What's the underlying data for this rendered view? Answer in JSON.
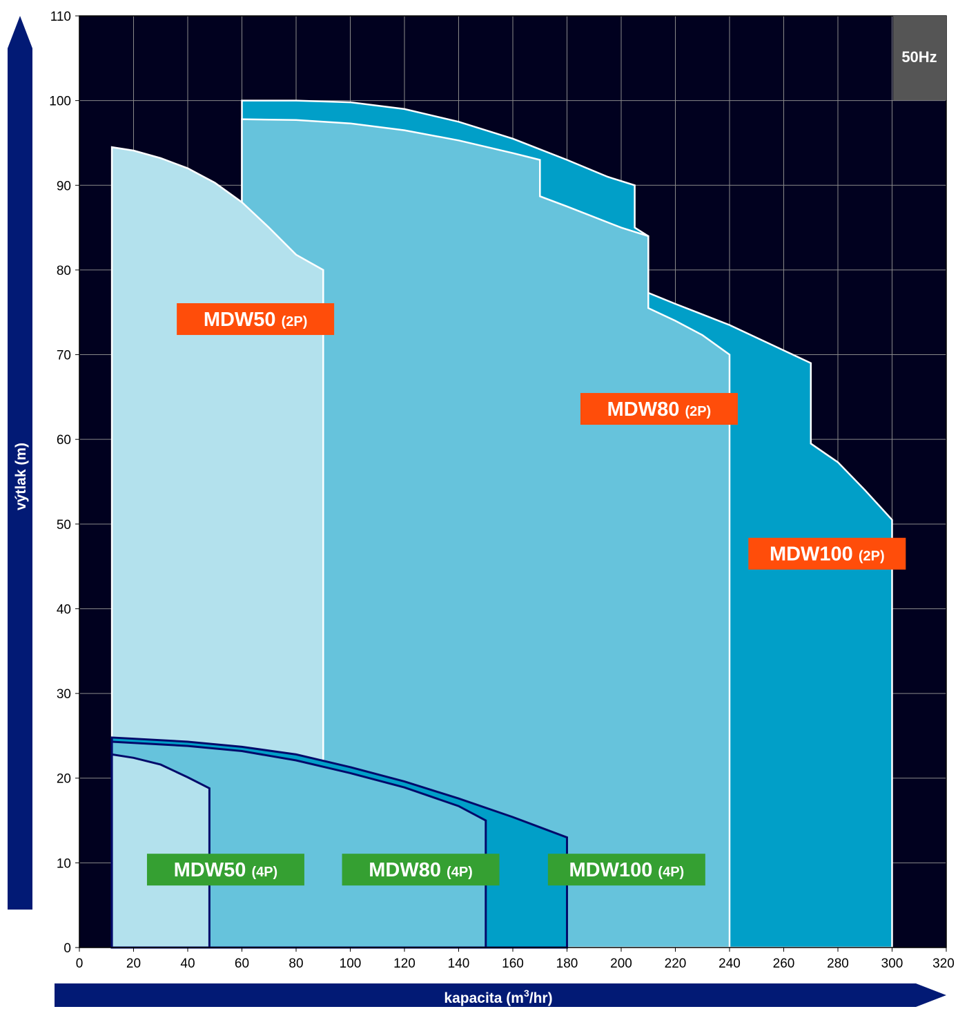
{
  "chart_data": {
    "type": "area",
    "xlabel": "kapacita (m",
    "xlabel_sup": "3",
    "xlabel_tail": "/hr)",
    "ylabel": "výtlak (m)",
    "xlim": [
      0,
      320
    ],
    "ylim": [
      0,
      110
    ],
    "xticks": [
      "0",
      "20",
      "40",
      "60",
      "80",
      "100",
      "120",
      "140",
      "160",
      "180",
      "200",
      "220",
      "240",
      "260",
      "280",
      "300",
      "320"
    ],
    "yticks": [
      "0",
      "10",
      "20",
      "30",
      "40",
      "50",
      "60",
      "70",
      "80",
      "90",
      "100",
      "110"
    ],
    "grid": true,
    "frequency_badge": "50Hz",
    "colors": {
      "background": "#01011f",
      "grid": "#8a8a8a",
      "light": "#b3e1ed",
      "mid": "#66c3dc",
      "dark": "#019fc8",
      "outline_2p": "#ffffff",
      "outline_4p": "#030a6b",
      "label_2p": "#ff4d0a",
      "label_4p": "#35a032",
      "axis_arrow": "#021a75",
      "badge": "#555555"
    },
    "series": [
      {
        "name": "MDW100 (2P)",
        "fill": "dark",
        "outline": "outline_2p",
        "points": [
          [
            60,
            0
          ],
          [
            60,
            100
          ],
          [
            80,
            100
          ],
          [
            100,
            99.8
          ],
          [
            120,
            99
          ],
          [
            140,
            97.5
          ],
          [
            160,
            95.5
          ],
          [
            180,
            93
          ],
          [
            195,
            91
          ],
          [
            205,
            90
          ],
          [
            205,
            85
          ],
          [
            210,
            84
          ],
          [
            210,
            77.3
          ],
          [
            220,
            76
          ],
          [
            240,
            73.5
          ],
          [
            260,
            70.5
          ],
          [
            270,
            69
          ],
          [
            270,
            59.5
          ],
          [
            280,
            57.3
          ],
          [
            290,
            54
          ],
          [
            300,
            50.5
          ],
          [
            300,
            0
          ]
        ]
      },
      {
        "name": "MDW80 (2P)",
        "fill": "mid",
        "outline": "outline_2p",
        "points": [
          [
            60,
            0
          ],
          [
            60,
            97.8
          ],
          [
            80,
            97.7
          ],
          [
            100,
            97.3
          ],
          [
            120,
            96.5
          ],
          [
            140,
            95.3
          ],
          [
            160,
            93.8
          ],
          [
            170,
            93
          ],
          [
            170,
            88.7
          ],
          [
            180,
            87.5
          ],
          [
            200,
            85
          ],
          [
            210,
            84
          ],
          [
            210,
            75.5
          ],
          [
            220,
            74
          ],
          [
            230,
            72.3
          ],
          [
            240,
            70
          ],
          [
            240,
            0
          ]
        ]
      },
      {
        "name": "MDW50 (2P)",
        "fill": "light",
        "outline": "outline_2p",
        "points": [
          [
            12,
            0
          ],
          [
            12,
            94.5
          ],
          [
            20,
            94.1
          ],
          [
            30,
            93.2
          ],
          [
            40,
            92
          ],
          [
            50,
            90.3
          ],
          [
            60,
            88
          ],
          [
            70,
            85
          ],
          [
            80,
            81.8
          ],
          [
            90,
            80
          ],
          [
            90,
            0
          ]
        ]
      },
      {
        "name": "MDW100 (4P)",
        "fill": "dark",
        "outline": "outline_4p",
        "points": [
          [
            12,
            0
          ],
          [
            12,
            24.8
          ],
          [
            40,
            24.3
          ],
          [
            60,
            23.7
          ],
          [
            80,
            22.8
          ],
          [
            100,
            21.3
          ],
          [
            120,
            19.6
          ],
          [
            140,
            17.6
          ],
          [
            160,
            15.4
          ],
          [
            180,
            13
          ],
          [
            180,
            0
          ]
        ]
      },
      {
        "name": "MDW80 (4P)",
        "fill": "mid",
        "outline": "outline_4p",
        "points": [
          [
            12,
            0
          ],
          [
            12,
            24.3
          ],
          [
            40,
            23.8
          ],
          [
            60,
            23.2
          ],
          [
            80,
            22.1
          ],
          [
            100,
            20.6
          ],
          [
            120,
            18.9
          ],
          [
            140,
            16.7
          ],
          [
            150,
            15
          ],
          [
            150,
            0
          ]
        ]
      },
      {
        "name": "MDW50 (4P)",
        "fill": "light",
        "outline": "outline_4p",
        "points": [
          [
            12,
            0
          ],
          [
            12,
            22.8
          ],
          [
            20,
            22.4
          ],
          [
            30,
            21.6
          ],
          [
            40,
            20.1
          ],
          [
            48,
            18.8
          ],
          [
            48,
            0
          ]
        ]
      }
    ],
    "labels": [
      {
        "main": "MDW50",
        "sub": "(2P)",
        "kind": "2p",
        "x": 65,
        "y": 74.2
      },
      {
        "main": "MDW80",
        "sub": "(2P)",
        "kind": "2p",
        "x": 214,
        "y": 63.6
      },
      {
        "main": "MDW100",
        "sub": "(2P)",
        "kind": "2p",
        "x": 276,
        "y": 46.5
      },
      {
        "main": "MDW50",
        "sub": "(4P)",
        "kind": "4p",
        "x": 54,
        "y": 9.2
      },
      {
        "main": "MDW80",
        "sub": "(4P)",
        "kind": "4p",
        "x": 126,
        "y": 9.2
      },
      {
        "main": "MDW100",
        "sub": "(4P)",
        "kind": "4p",
        "x": 202,
        "y": 9.2
      }
    ]
  }
}
